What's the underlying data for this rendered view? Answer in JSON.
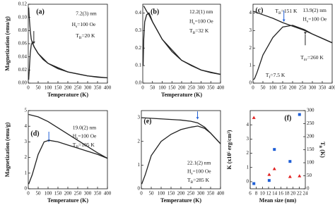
{
  "chart_data": [
    {
      "type": "line",
      "label": "(a)",
      "xlabel": "Temperature (K)",
      "ylabel": "Magnetization (emu/g)",
      "xlim": [
        0,
        400
      ],
      "xticks": [
        0,
        50,
        100,
        150,
        200,
        250,
        300,
        350,
        400
      ],
      "ylim": [
        0,
        0.12
      ],
      "yticks": [
        {
          "value": 0,
          "label": "0.00"
        },
        {
          "value": 0.02,
          "label": "0.02"
        },
        {
          "value": 0.04,
          "label": "0.04"
        },
        {
          "value": 0.06,
          "label": "0.06"
        },
        {
          "value": 0.08,
          "label": "0.08"
        },
        {
          "value": 0.1,
          "label": "0.10"
        },
        {
          "value": 0.12,
          "label": "0.12"
        }
      ],
      "annotations": [
        [
          "7.2(3) nm"
        ],
        [
          "H",
          "s",
          "=100 Oe"
        ],
        [
          "T",
          "B",
          "=20 K"
        ]
      ],
      "series": [
        {
          "color": "#222222",
          "x": [
            2,
            5,
            10,
            15,
            20,
            30,
            50,
            75,
            100,
            150,
            200,
            250,
            300,
            350,
            400
          ],
          "values": [
            0.115,
            0.1,
            0.08,
            0.067,
            0.062,
            0.055,
            0.045,
            0.036,
            0.03,
            0.022,
            0.017,
            0.014,
            0.011,
            0.009,
            0.008
          ]
        },
        {
          "color": "#222222",
          "x": [
            2,
            5,
            10,
            15,
            20,
            30,
            50,
            100,
            200,
            300,
            400
          ],
          "values": [
            0.005,
            0.02,
            0.045,
            0.058,
            0.062,
            0.055,
            0.045,
            0.03,
            0.017,
            0.011,
            0.008
          ]
        }
      ]
    },
    {
      "type": "line",
      "label": "(b)",
      "xlabel": "Temperature (K)",
      "xlim": [
        0,
        400
      ],
      "xticks": [
        0,
        50,
        100,
        150,
        200,
        250,
        300,
        350,
        400
      ],
      "ylim": [
        0,
        0.45
      ],
      "yticks": [
        {
          "value": 0,
          "label": "0.0"
        },
        {
          "value": 0.1,
          "label": "0.1"
        },
        {
          "value": 0.2,
          "label": "0.2"
        },
        {
          "value": 0.3,
          "label": "0.3"
        },
        {
          "value": 0.4,
          "label": "0.4"
        }
      ],
      "annotations": [
        [
          "12.2(1) nm"
        ],
        [
          "H",
          "s",
          "=100 Oe"
        ],
        [
          "T",
          "B",
          "=32 K"
        ]
      ],
      "series": [
        {
          "color": "#222222",
          "x": [
            5,
            10,
            20,
            32,
            50,
            75,
            100,
            150,
            200,
            250,
            300,
            350,
            400
          ],
          "values": [
            0.44,
            0.43,
            0.41,
            0.39,
            0.35,
            0.3,
            0.25,
            0.18,
            0.13,
            0.1,
            0.075,
            0.06,
            0.05
          ]
        },
        {
          "color": "#222222",
          "x": [
            2,
            5,
            10,
            20,
            32,
            40,
            50,
            100,
            200,
            300,
            400
          ],
          "values": [
            0.1,
            0.25,
            0.35,
            0.39,
            0.4,
            0.38,
            0.35,
            0.25,
            0.13,
            0.075,
            0.05
          ]
        }
      ]
    },
    {
      "type": "line",
      "label": "(c)",
      "xlim": [
        0,
        400
      ],
      "xticks": [
        0,
        50,
        100,
        150,
        200,
        250,
        300,
        350,
        400
      ],
      "ylim": [
        0,
        4.5
      ],
      "yticks": [
        0,
        1,
        2,
        3,
        4
      ],
      "annotations": [
        [
          "T",
          "B",
          "=151 K"
        ],
        [
          "13.9(2) nm"
        ],
        [
          "H",
          "s",
          "=100 Oe"
        ],
        [
          "T",
          "irr",
          "=260 K"
        ],
        [
          "T",
          "f",
          "=7.5 K"
        ]
      ],
      "series": [
        {
          "color": "#222222",
          "x": [
            2,
            50,
            100,
            150,
            200,
            250,
            300,
            350,
            400
          ],
          "values": [
            4.1,
            3.9,
            3.7,
            3.45,
            3.25,
            3.05,
            2.8,
            2.55,
            2.3
          ]
        },
        {
          "color": "#222222",
          "x": [
            2,
            7.5,
            20,
            50,
            100,
            150,
            200,
            260,
            300,
            350,
            400
          ],
          "values": [
            0.2,
            0.25,
            0.6,
            1.6,
            2.6,
            3.2,
            3.3,
            3.05,
            2.8,
            2.55,
            2.3
          ]
        }
      ]
    },
    {
      "type": "line",
      "label": "(d)",
      "xlabel": "Temperature (K)",
      "ylabel": "Magnetization (emu/g)",
      "xlim": [
        0,
        400
      ],
      "xticks": [
        0,
        50,
        100,
        150,
        200,
        250,
        300,
        350,
        400
      ],
      "ylim": [
        0,
        5
      ],
      "yticks": [
        0,
        1,
        2,
        3,
        4,
        5
      ],
      "annotations": [
        [
          "19.0(2) nm"
        ],
        [
          "H",
          "s",
          "=100 Oe"
        ],
        [
          "T",
          "B",
          "=105 K"
        ]
      ],
      "series": [
        {
          "color": "#222222",
          "x": [
            2,
            50,
            100,
            150,
            200,
            250,
            300,
            350,
            400
          ],
          "values": [
            4.75,
            4.6,
            4.3,
            3.9,
            3.5,
            3.1,
            2.7,
            2.3,
            1.95
          ]
        },
        {
          "color": "#222222",
          "x": [
            2,
            20,
            50,
            80,
            105,
            150,
            200,
            250,
            300,
            350,
            400
          ],
          "values": [
            0.3,
            0.9,
            2.2,
            3.0,
            3.1,
            3.0,
            2.8,
            2.6,
            2.4,
            2.2,
            1.95
          ]
        }
      ]
    },
    {
      "type": "line",
      "label": "(e)",
      "xlabel": "Temperature (K)",
      "xlim": [
        0,
        400
      ],
      "xticks": [
        0,
        50,
        100,
        150,
        200,
        250,
        300,
        350,
        400
      ],
      "ylim": [
        0,
        3.3
      ],
      "yticks": [
        0,
        1,
        2,
        3
      ],
      "annotations": [
        [
          "22.1(2) nm"
        ],
        [
          "H",
          "s",
          "=100 Oe"
        ],
        [
          "T",
          "B",
          "=285 K"
        ]
      ],
      "series": [
        {
          "color": "#222222",
          "x": [
            2,
            100,
            200,
            250,
            285,
            320,
            350,
            400
          ],
          "values": [
            3.0,
            2.95,
            2.9,
            2.85,
            2.78,
            2.6,
            2.35,
            1.9
          ]
        },
        {
          "color": "#222222",
          "x": [
            2,
            20,
            50,
            100,
            150,
            200,
            250,
            285,
            320,
            350,
            400
          ],
          "values": [
            0.2,
            0.6,
            1.4,
            2.0,
            2.3,
            2.5,
            2.6,
            2.65,
            2.55,
            2.35,
            1.9
          ]
        }
      ]
    },
    {
      "type": "scatter",
      "label": "(f)",
      "xlabel": "Mean size (nm)",
      "ylabel": "K (x10⁵ erg/cm³)",
      "y2label": [
        "T",
        "B",
        " (K)"
      ],
      "xlim": [
        6,
        24
      ],
      "xticks": [
        6,
        8,
        10,
        12,
        14,
        16,
        18,
        20,
        22,
        24
      ],
      "ylim": [
        -0.5,
        5
      ],
      "yticks": [
        0,
        1,
        2,
        3,
        4
      ],
      "y2lim": [
        0,
        300
      ],
      "y2ticks": [
        0,
        50,
        100,
        150,
        200,
        250,
        300
      ],
      "annotations": [],
      "series": [
        {
          "color": "#e02020",
          "marker": "triangle",
          "x": [
            7.2,
            12.2,
            13.9,
            19.0,
            22.1
          ],
          "values": [
            4.5,
            0.5,
            0.9,
            0.35,
            0.4
          ]
        },
        {
          "color": "#1f5fd6",
          "marker": "square",
          "axis": "y2",
          "x": [
            7.2,
            12.2,
            13.9,
            19.0,
            22.1
          ],
          "values": [
            20,
            32,
            151,
            105,
            285
          ]
        }
      ]
    }
  ]
}
